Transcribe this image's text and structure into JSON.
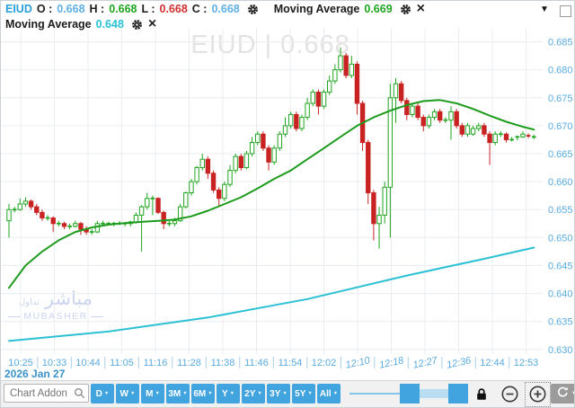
{
  "legend": {
    "symbol": "EIUD",
    "o_label": "O :",
    "o_value": "0.668",
    "h_label": "H :",
    "h_value": "0.668",
    "l_label": "L :",
    "l_value": "0.668",
    "c_label": "C :",
    "c_value": "0.668",
    "ma1_label": "Moving Average",
    "ma1_value": "0.669",
    "ma2_label": "Moving Average",
    "ma2_value": "0.648"
  },
  "watermarks": {
    "center": "EIUD  |  0.668",
    "logo_ar": "مباشر",
    "logo_ar_small": "تداول",
    "logo_en": "MUBASHER"
  },
  "toolbar": {
    "search_placeholder": "Chart Addon",
    "range_buttons": [
      "D",
      "W",
      "M",
      "3M",
      "6M",
      "Y",
      "2Y",
      "3Y",
      "5Y",
      "All"
    ]
  },
  "colors": {
    "up": "#1fa51f",
    "up_fill": "#ffffff",
    "down": "#c92222",
    "ma_fast": "#1d9b1d",
    "ma_slow": "#2bc0d4",
    "grid": "#e9edf1",
    "axis_text": "#5aabdf",
    "tick_mark": "#a9cfe9",
    "accent_blue": "#41a4de"
  },
  "chart_data": {
    "type": "candlestick",
    "symbol": "EIUD",
    "last_close": 0.668,
    "date_label": "2026 Jan 27",
    "price_axis": {
      "max": 0.6875,
      "min": 0.629,
      "tick_step": 0.005
    },
    "price_ticks": [
      "0.685",
      "0.680",
      "0.675",
      "0.670",
      "0.665",
      "0.660",
      "0.655",
      "0.650",
      "0.645",
      "0.640",
      "0.635",
      "0.630"
    ],
    "time_labels": [
      "10:25",
      "10:33",
      "10:44",
      "11:05",
      "11:16",
      "11:28",
      "11:38",
      "11:46",
      "11:54",
      "12:02",
      "12:10",
      "12:18",
      "12:27",
      "12:36",
      "12:44",
      "12:53"
    ],
    "slanted_time_indices": [
      10,
      11,
      12,
      13
    ],
    "candles": [
      [
        0.653,
        0.656,
        0.65,
        0.655
      ],
      [
        0.655,
        0.6555,
        0.6545,
        0.655
      ],
      [
        0.655,
        0.657,
        0.6548,
        0.656
      ],
      [
        0.656,
        0.6572,
        0.6555,
        0.6565
      ],
      [
        0.6565,
        0.6568,
        0.655,
        0.6555
      ],
      [
        0.6555,
        0.656,
        0.654,
        0.6545
      ],
      [
        0.6545,
        0.655,
        0.653,
        0.6535
      ],
      [
        0.6535,
        0.654,
        0.653,
        0.6535
      ],
      [
        0.6535,
        0.6538,
        0.651,
        0.6525
      ],
      [
        0.6525,
        0.653,
        0.652,
        0.6525
      ],
      [
        0.6525,
        0.6528,
        0.6515,
        0.652
      ],
      [
        0.652,
        0.6525,
        0.6515,
        0.652
      ],
      [
        0.652,
        0.653,
        0.6518,
        0.6525
      ],
      [
        0.6525,
        0.6528,
        0.6505,
        0.6515
      ],
      [
        0.6515,
        0.652,
        0.6505,
        0.651
      ],
      [
        0.651,
        0.6515,
        0.6505,
        0.651
      ],
      [
        0.651,
        0.653,
        0.6508,
        0.6525
      ],
      [
        0.6525,
        0.653,
        0.652,
        0.6525
      ],
      [
        0.6525,
        0.6528,
        0.6522,
        0.6525
      ],
      [
        0.6525,
        0.6528,
        0.652,
        0.6525
      ],
      [
        0.6525,
        0.653,
        0.6522,
        0.6525
      ],
      [
        0.6525,
        0.6528,
        0.652,
        0.6525
      ],
      [
        0.6525,
        0.653,
        0.652,
        0.6528
      ],
      [
        0.6528,
        0.6545,
        0.6525,
        0.654
      ],
      [
        0.654,
        0.6558,
        0.6475,
        0.6555
      ],
      [
        0.6555,
        0.658,
        0.655,
        0.657
      ],
      [
        0.657,
        0.6575,
        0.654,
        0.657
      ],
      [
        0.657,
        0.6572,
        0.6542,
        0.6545
      ],
      [
        0.6545,
        0.6548,
        0.6515,
        0.6525
      ],
      [
        0.6525,
        0.653,
        0.652,
        0.6525
      ],
      [
        0.6525,
        0.6535,
        0.652,
        0.653
      ],
      [
        0.653,
        0.656,
        0.6528,
        0.6555
      ],
      [
        0.6555,
        0.6582,
        0.6552,
        0.658
      ],
      [
        0.658,
        0.6605,
        0.6575,
        0.66
      ],
      [
        0.66,
        0.6628,
        0.6595,
        0.6625
      ],
      [
        0.6625,
        0.665,
        0.662,
        0.664
      ],
      [
        0.664,
        0.6645,
        0.6605,
        0.6615
      ],
      [
        0.6615,
        0.662,
        0.658,
        0.6585
      ],
      [
        0.6585,
        0.659,
        0.6555,
        0.657
      ],
      [
        0.657,
        0.66,
        0.6565,
        0.6595
      ],
      [
        0.6595,
        0.663,
        0.659,
        0.662
      ],
      [
        0.662,
        0.665,
        0.6615,
        0.6645
      ],
      [
        0.6645,
        0.665,
        0.662,
        0.6625
      ],
      [
        0.6625,
        0.6655,
        0.6622,
        0.665
      ],
      [
        0.665,
        0.668,
        0.6645,
        0.667
      ],
      [
        0.667,
        0.669,
        0.6665,
        0.6685
      ],
      [
        0.6685,
        0.669,
        0.6655,
        0.666
      ],
      [
        0.666,
        0.6665,
        0.662,
        0.6635
      ],
      [
        0.6635,
        0.6665,
        0.663,
        0.666
      ],
      [
        0.666,
        0.669,
        0.6655,
        0.6685
      ],
      [
        0.6685,
        0.6715,
        0.668,
        0.67
      ],
      [
        0.67,
        0.6725,
        0.6695,
        0.672
      ],
      [
        0.672,
        0.6725,
        0.669,
        0.6695
      ],
      [
        0.6695,
        0.672,
        0.669,
        0.6715
      ],
      [
        0.6715,
        0.675,
        0.671,
        0.674
      ],
      [
        0.674,
        0.6765,
        0.6735,
        0.676
      ],
      [
        0.676,
        0.6765,
        0.672,
        0.6735
      ],
      [
        0.6735,
        0.6765,
        0.673,
        0.676
      ],
      [
        0.676,
        0.679,
        0.6755,
        0.678
      ],
      [
        0.678,
        0.681,
        0.6775,
        0.68
      ],
      [
        0.68,
        0.684,
        0.6795,
        0.6825
      ],
      [
        0.6825,
        0.683,
        0.6785,
        0.679
      ],
      [
        0.679,
        0.6825,
        0.6785,
        0.681
      ],
      [
        0.681,
        0.6815,
        0.672,
        0.674
      ],
      [
        0.674,
        0.6745,
        0.6655,
        0.667
      ],
      [
        0.667,
        0.6675,
        0.656,
        0.658
      ],
      [
        0.658,
        0.6585,
        0.6495,
        0.6525
      ],
      [
        0.6525,
        0.6555,
        0.648,
        0.654
      ],
      [
        0.654,
        0.66,
        0.6525,
        0.659
      ],
      [
        0.659,
        0.6775,
        0.65,
        0.675
      ],
      [
        0.675,
        0.6785,
        0.6705,
        0.6775
      ],
      [
        0.6775,
        0.678,
        0.674,
        0.6745
      ],
      [
        0.6745,
        0.675,
        0.671,
        0.672
      ],
      [
        0.672,
        0.674,
        0.6715,
        0.6735
      ],
      [
        0.6735,
        0.674,
        0.671,
        0.6715
      ],
      [
        0.6715,
        0.672,
        0.669,
        0.67
      ],
      [
        0.67,
        0.672,
        0.6695,
        0.6715
      ],
      [
        0.6715,
        0.673,
        0.671,
        0.6725
      ],
      [
        0.6725,
        0.673,
        0.6705,
        0.671
      ],
      [
        0.671,
        0.6715,
        0.6705,
        0.671
      ],
      [
        0.671,
        0.6735,
        0.6675,
        0.6725
      ],
      [
        0.6725,
        0.673,
        0.6695,
        0.67
      ],
      [
        0.67,
        0.6705,
        0.668,
        0.6685
      ],
      [
        0.6685,
        0.6705,
        0.668,
        0.67
      ],
      [
        0.6685,
        0.67,
        0.6682,
        0.6695
      ],
      [
        0.6695,
        0.6705,
        0.669,
        0.67
      ],
      [
        0.67,
        0.6705,
        0.668,
        0.6685
      ],
      [
        0.6685,
        0.669,
        0.663,
        0.667
      ],
      [
        0.667,
        0.669,
        0.6665,
        0.6685
      ],
      [
        0.6685,
        0.669,
        0.668,
        0.6685
      ],
      [
        0.6685,
        0.6688,
        0.667,
        0.6675
      ],
      [
        0.6675,
        0.668,
        0.6672,
        0.6675
      ],
      [
        0.6678,
        0.6682,
        0.6674,
        0.668
      ],
      [
        0.668,
        0.669,
        0.6678,
        0.6685
      ],
      [
        0.6682,
        0.6686,
        0.6678,
        0.668
      ],
      [
        0.668,
        0.6684,
        0.6676,
        0.668
      ]
    ],
    "overlays": [
      {
        "name": "Moving Average",
        "last_value": 0.669,
        "color": "#1d9b1d",
        "points": [
          [
            0,
            0.641
          ],
          [
            3,
            0.645
          ],
          [
            6,
            0.6475
          ],
          [
            9,
            0.6495
          ],
          [
            12,
            0.651
          ],
          [
            15,
            0.6518
          ],
          [
            18,
            0.6523
          ],
          [
            21,
            0.6526
          ],
          [
            24,
            0.6528
          ],
          [
            27,
            0.653
          ],
          [
            30,
            0.6532
          ],
          [
            33,
            0.6538
          ],
          [
            36,
            0.6548
          ],
          [
            39,
            0.656
          ],
          [
            42,
            0.6572
          ],
          [
            45,
            0.6588
          ],
          [
            48,
            0.6605
          ],
          [
            51,
            0.662
          ],
          [
            54,
            0.664
          ],
          [
            57,
            0.666
          ],
          [
            60,
            0.668
          ],
          [
            63,
            0.67
          ],
          [
            66,
            0.6715
          ],
          [
            69,
            0.6727
          ],
          [
            72,
            0.6737
          ],
          [
            75,
            0.6744
          ],
          [
            78,
            0.6746
          ],
          [
            81,
            0.674
          ],
          [
            84,
            0.673
          ],
          [
            87,
            0.6718
          ],
          [
            90,
            0.6707
          ],
          [
            93,
            0.6698
          ],
          [
            95,
            0.6693
          ]
        ]
      },
      {
        "name": "Moving Average",
        "last_value": 0.648,
        "color": "#2bc0d4",
        "points": [
          [
            0,
            0.6315
          ],
          [
            18,
            0.6332
          ],
          [
            36,
            0.6357
          ],
          [
            54,
            0.639
          ],
          [
            72,
            0.6432
          ],
          [
            86,
            0.6462
          ],
          [
            95,
            0.6482
          ]
        ]
      }
    ]
  }
}
